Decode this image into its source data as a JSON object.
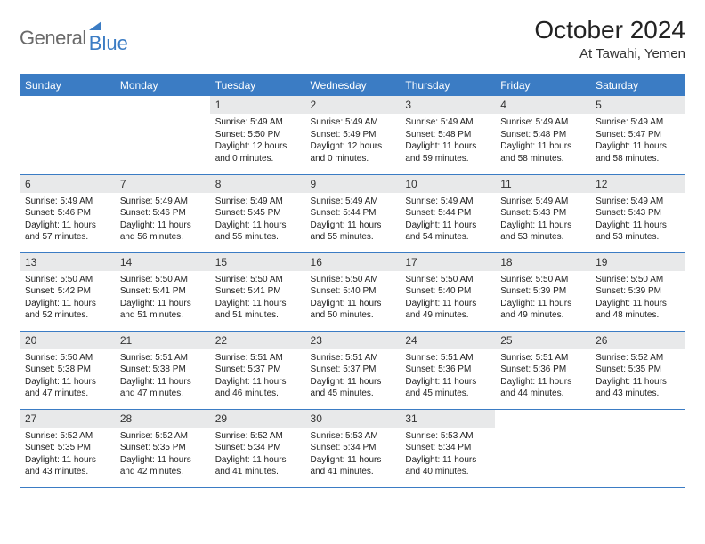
{
  "logo": {
    "word1": "General",
    "word2": "Blue"
  },
  "title": "October 2024",
  "subtitle": "At Tawahi, Yemen",
  "colors": {
    "header_bg": "#3b7cc4",
    "header_text": "#ffffff",
    "daynum_bg": "#e8e9ea",
    "border": "#3b7cc4",
    "logo_gray": "#6a6a6a",
    "logo_blue": "#3b7cc4"
  },
  "weekdays": [
    "Sunday",
    "Monday",
    "Tuesday",
    "Wednesday",
    "Thursday",
    "Friday",
    "Saturday"
  ],
  "weeks": [
    [
      null,
      null,
      {
        "n": "1",
        "sunrise": "5:49 AM",
        "sunset": "5:50 PM",
        "daylight": "12 hours and 0 minutes."
      },
      {
        "n": "2",
        "sunrise": "5:49 AM",
        "sunset": "5:49 PM",
        "daylight": "12 hours and 0 minutes."
      },
      {
        "n": "3",
        "sunrise": "5:49 AM",
        "sunset": "5:48 PM",
        "daylight": "11 hours and 59 minutes."
      },
      {
        "n": "4",
        "sunrise": "5:49 AM",
        "sunset": "5:48 PM",
        "daylight": "11 hours and 58 minutes."
      },
      {
        "n": "5",
        "sunrise": "5:49 AM",
        "sunset": "5:47 PM",
        "daylight": "11 hours and 58 minutes."
      }
    ],
    [
      {
        "n": "6",
        "sunrise": "5:49 AM",
        "sunset": "5:46 PM",
        "daylight": "11 hours and 57 minutes."
      },
      {
        "n": "7",
        "sunrise": "5:49 AM",
        "sunset": "5:46 PM",
        "daylight": "11 hours and 56 minutes."
      },
      {
        "n": "8",
        "sunrise": "5:49 AM",
        "sunset": "5:45 PM",
        "daylight": "11 hours and 55 minutes."
      },
      {
        "n": "9",
        "sunrise": "5:49 AM",
        "sunset": "5:44 PM",
        "daylight": "11 hours and 55 minutes."
      },
      {
        "n": "10",
        "sunrise": "5:49 AM",
        "sunset": "5:44 PM",
        "daylight": "11 hours and 54 minutes."
      },
      {
        "n": "11",
        "sunrise": "5:49 AM",
        "sunset": "5:43 PM",
        "daylight": "11 hours and 53 minutes."
      },
      {
        "n": "12",
        "sunrise": "5:49 AM",
        "sunset": "5:43 PM",
        "daylight": "11 hours and 53 minutes."
      }
    ],
    [
      {
        "n": "13",
        "sunrise": "5:50 AM",
        "sunset": "5:42 PM",
        "daylight": "11 hours and 52 minutes."
      },
      {
        "n": "14",
        "sunrise": "5:50 AM",
        "sunset": "5:41 PM",
        "daylight": "11 hours and 51 minutes."
      },
      {
        "n": "15",
        "sunrise": "5:50 AM",
        "sunset": "5:41 PM",
        "daylight": "11 hours and 51 minutes."
      },
      {
        "n": "16",
        "sunrise": "5:50 AM",
        "sunset": "5:40 PM",
        "daylight": "11 hours and 50 minutes."
      },
      {
        "n": "17",
        "sunrise": "5:50 AM",
        "sunset": "5:40 PM",
        "daylight": "11 hours and 49 minutes."
      },
      {
        "n": "18",
        "sunrise": "5:50 AM",
        "sunset": "5:39 PM",
        "daylight": "11 hours and 49 minutes."
      },
      {
        "n": "19",
        "sunrise": "5:50 AM",
        "sunset": "5:39 PM",
        "daylight": "11 hours and 48 minutes."
      }
    ],
    [
      {
        "n": "20",
        "sunrise": "5:50 AM",
        "sunset": "5:38 PM",
        "daylight": "11 hours and 47 minutes."
      },
      {
        "n": "21",
        "sunrise": "5:51 AM",
        "sunset": "5:38 PM",
        "daylight": "11 hours and 47 minutes."
      },
      {
        "n": "22",
        "sunrise": "5:51 AM",
        "sunset": "5:37 PM",
        "daylight": "11 hours and 46 minutes."
      },
      {
        "n": "23",
        "sunrise": "5:51 AM",
        "sunset": "5:37 PM",
        "daylight": "11 hours and 45 minutes."
      },
      {
        "n": "24",
        "sunrise": "5:51 AM",
        "sunset": "5:36 PM",
        "daylight": "11 hours and 45 minutes."
      },
      {
        "n": "25",
        "sunrise": "5:51 AM",
        "sunset": "5:36 PM",
        "daylight": "11 hours and 44 minutes."
      },
      {
        "n": "26",
        "sunrise": "5:52 AM",
        "sunset": "5:35 PM",
        "daylight": "11 hours and 43 minutes."
      }
    ],
    [
      {
        "n": "27",
        "sunrise": "5:52 AM",
        "sunset": "5:35 PM",
        "daylight": "11 hours and 43 minutes."
      },
      {
        "n": "28",
        "sunrise": "5:52 AM",
        "sunset": "5:35 PM",
        "daylight": "11 hours and 42 minutes."
      },
      {
        "n": "29",
        "sunrise": "5:52 AM",
        "sunset": "5:34 PM",
        "daylight": "11 hours and 41 minutes."
      },
      {
        "n": "30",
        "sunrise": "5:53 AM",
        "sunset": "5:34 PM",
        "daylight": "11 hours and 41 minutes."
      },
      {
        "n": "31",
        "sunrise": "5:53 AM",
        "sunset": "5:34 PM",
        "daylight": "11 hours and 40 minutes."
      },
      null,
      null
    ]
  ]
}
